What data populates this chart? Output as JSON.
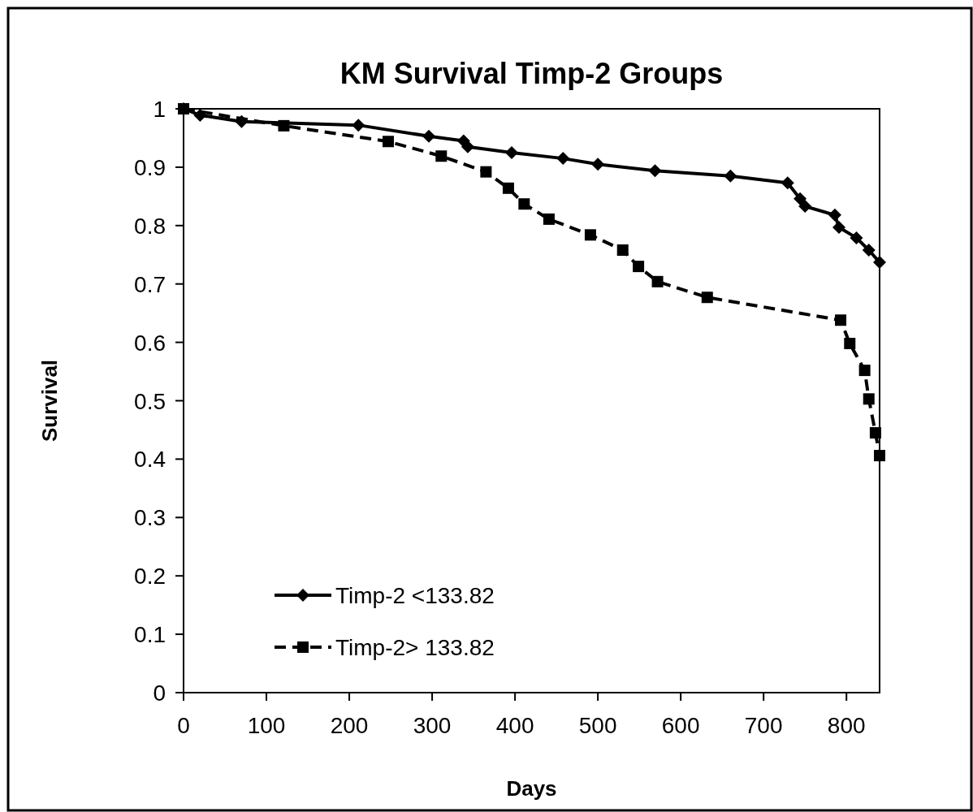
{
  "chart_data": {
    "type": "line",
    "title": "KM Survival Timp-2 Groups",
    "xlabel": "Days",
    "ylabel": "Survival",
    "xlim": [
      0,
      840
    ],
    "xticks": [
      0,
      100,
      200,
      300,
      400,
      500,
      600,
      700,
      800
    ],
    "ylim": [
      0,
      1
    ],
    "yticks": [
      0,
      0.1,
      0.2,
      0.3,
      0.4,
      0.5,
      0.6,
      0.7,
      0.8,
      0.9,
      1
    ],
    "grid": false,
    "legend": "bottom left",
    "series": [
      {
        "name": "Timp-2 <133.82",
        "color": "#000000",
        "marker": "diamond",
        "line_style": "solid",
        "x": [
          0,
          20,
          70,
          211,
          296,
          338,
          343,
          396,
          458,
          500,
          569,
          660,
          729,
          744,
          750,
          786,
          791,
          812,
          827,
          840
        ],
        "values": [
          1,
          0.989,
          0.978,
          0.972,
          0.953,
          0.945,
          0.935,
          0.925,
          0.915,
          0.905,
          0.894,
          0.885,
          0.873,
          0.846,
          0.833,
          0.818,
          0.797,
          0.779,
          0.758,
          0.737
        ]
      },
      {
        "name": "Timp-2> 133.82",
        "color": "#000000",
        "marker": "square",
        "line_style": "dashed",
        "x": [
          0,
          121,
          247,
          311,
          365,
          392,
          411,
          441,
          491,
          530,
          549,
          572,
          632,
          793,
          804,
          822,
          827,
          835,
          840
        ],
        "values": [
          1,
          0.971,
          0.944,
          0.919,
          0.892,
          0.864,
          0.837,
          0.811,
          0.784,
          0.758,
          0.73,
          0.704,
          0.677,
          0.638,
          0.598,
          0.552,
          0.503,
          0.445,
          0.406
        ]
      }
    ]
  }
}
